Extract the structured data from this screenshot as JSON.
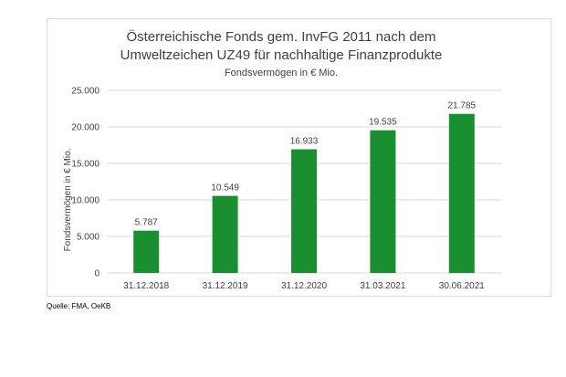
{
  "chart_data": {
    "type": "bar",
    "title_lines": [
      "Österreichische Fonds gem. InvFG 2011 nach dem",
      "Umweltzeichen UZ49 für nachhaltige Finanzprodukte"
    ],
    "subtitle": "Fondsvermögen in € Mio.",
    "xlabel": "",
    "ylabel": "Fondsvermögen in € Mio.",
    "categories": [
      "31.12.2018",
      "31.12.2019",
      "31.12.2020",
      "31.03.2021",
      "30.06.2021"
    ],
    "values": [
      5787,
      10549,
      16933,
      19535,
      21785
    ],
    "data_labels": [
      "5.787",
      "10.549",
      "16.933",
      "19.535",
      "21.785"
    ],
    "ylim": [
      0,
      25000
    ],
    "yticks": [
      0,
      5000,
      10000,
      15000,
      20000,
      25000
    ],
    "ytick_labels": [
      "0",
      "5.000",
      "10.000",
      "15.000",
      "20.000",
      "25.000"
    ],
    "grid": true,
    "legend": "none",
    "colors": {
      "bar": "#1a8f30",
      "grid": "#d9d9d9",
      "text": "#404040"
    }
  },
  "source": "Quelle: FMA, OeKB"
}
